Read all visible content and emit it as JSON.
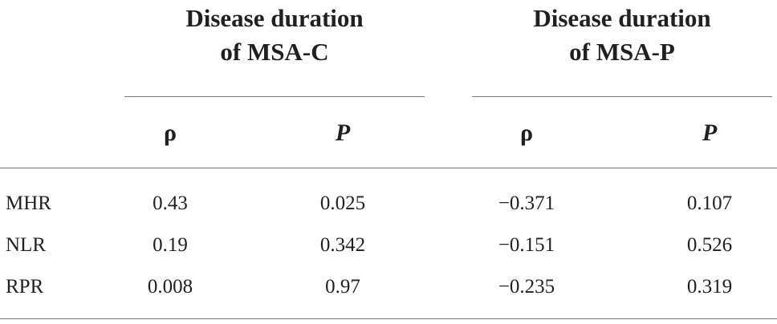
{
  "table": {
    "group_headers": [
      {
        "line1": "Disease duration",
        "line2": "of MSA-C"
      },
      {
        "line1": "Disease duration",
        "line2": "of MSA-P"
      }
    ],
    "subheaders": [
      "ρ",
      "P",
      "ρ",
      "P"
    ],
    "rows": [
      {
        "label": "MHR",
        "values": [
          "0.43",
          "0.025",
          "−0.371",
          "0.107"
        ]
      },
      {
        "label": "NLR",
        "values": [
          "0.19",
          "0.342",
          "−0.151",
          "0.526"
        ]
      },
      {
        "label": "RPR",
        "values": [
          "0.008",
          "0.97",
          "−0.235",
          "0.319"
        ]
      }
    ]
  }
}
